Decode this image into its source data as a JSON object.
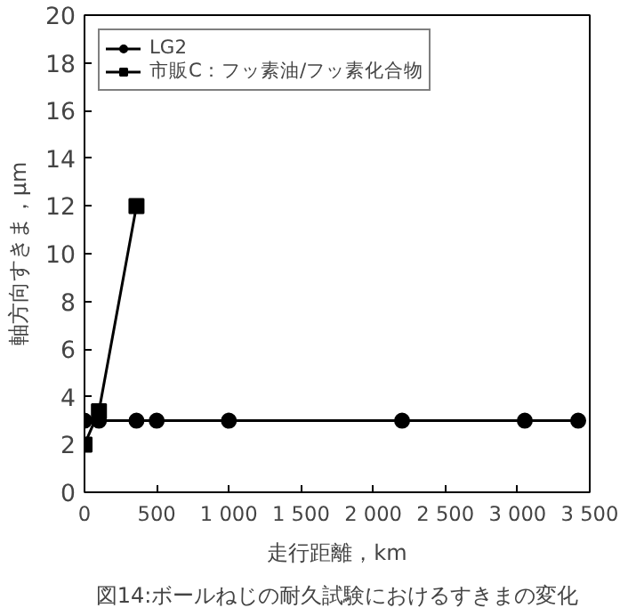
{
  "chart_data": {
    "type": "line",
    "xlabel": "走行距離，km",
    "ylabel": "軸方向すきま，μm",
    "annotations": [
      "図14:ボールねじの耐久試験におけるすきまの変化"
    ],
    "xlim": [
      0,
      3500
    ],
    "xticks": [
      0,
      500,
      {
        "value": 1000,
        "label": "1 000"
      },
      {
        "value": 1500,
        "label": "1 500"
      },
      {
        "value": 2000,
        "label": "2 000"
      },
      {
        "value": 2500,
        "label": "2 500"
      },
      {
        "value": 3000,
        "label": "3 000"
      },
      {
        "value": 3500,
        "label": "3 500"
      }
    ],
    "ylim": [
      0,
      20
    ],
    "yticks": [
      0,
      2,
      4,
      6,
      8,
      10,
      12,
      14,
      16,
      18,
      20
    ],
    "grid": false,
    "legend": "top left",
    "line_style": "solid",
    "series": [
      {
        "name": "LG2",
        "color": "#000000",
        "marker": "circle",
        "x": [
          0,
          100,
          360,
          500,
          1000,
          2200,
          3050,
          3420
        ],
        "values": [
          3,
          3,
          3,
          3,
          3,
          3,
          3,
          3
        ]
      },
      {
        "name": "市販C：フッ素油/フッ素化合物",
        "color": "#000000",
        "marker": "square",
        "x": [
          0,
          100,
          360
        ],
        "values": [
          2,
          3.4,
          12
        ]
      }
    ]
  }
}
